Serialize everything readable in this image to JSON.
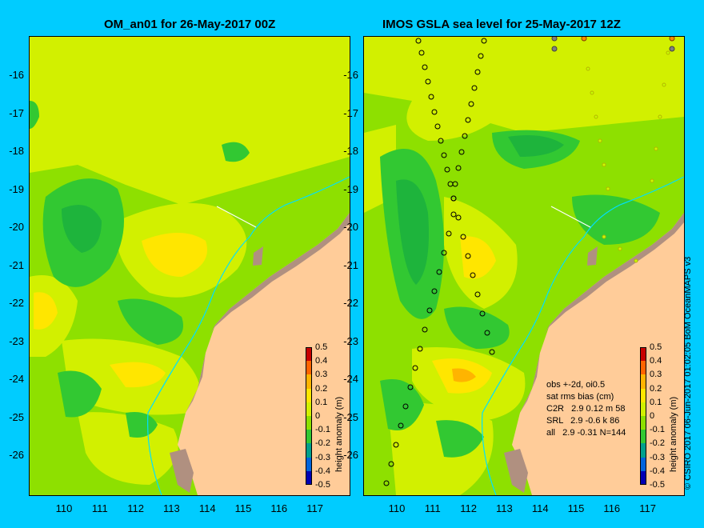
{
  "left_title": "OM_an01 for 26-May-2017 00Z",
  "right_title": "IMOS GSLA sea level  for 25-May-2017 12Z",
  "y_ticks": [
    "-16",
    "-17",
    "-18",
    "-19",
    "-20",
    "-21",
    "-22",
    "-23",
    "-24",
    "-25",
    "-26"
  ],
  "x_ticks": [
    "110",
    "111",
    "112",
    "113",
    "114",
    "115",
    "116",
    "117"
  ],
  "colorbar": {
    "title": "height anomaly (m)",
    "labels": [
      "0.5",
      "0.4",
      "0.3",
      "0.2",
      "0.1",
      "0",
      "-0.1",
      "-0.2",
      "-0.3",
      "-0.4",
      "-0.5"
    ],
    "colors": [
      "#c80000",
      "#ff6400",
      "#ffb400",
      "#ffe600",
      "#d2f000",
      "#8ee000",
      "#32c832",
      "#00a08c",
      "#0064dc",
      "#0000b4"
    ]
  },
  "stats": {
    "line1": "obs +-2d, oi0.5",
    "line2": "sat rms bias (cm)",
    "line3": "C2R   2.9 0.12 m 58",
    "line4": "SRL   2.9 -0.6 k 86",
    "line5": "all   2.9 -0.31 N=144"
  },
  "credit": "© CSIRO 2017   06-Jun-2017 01:02:05 BoM OceanMAPS v3",
  "colors": {
    "background": "#00ccff",
    "land": "#ffcc99",
    "shore": "#b09080"
  }
}
